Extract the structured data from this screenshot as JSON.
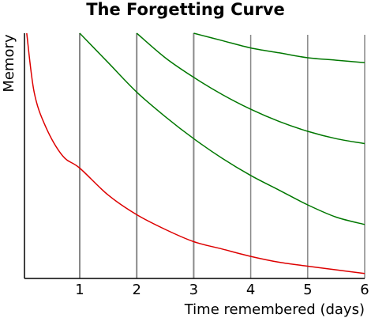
{
  "chart_data": {
    "type": "line",
    "title": "The Forgetting Curve",
    "xlabel": "Time remembered (days)",
    "ylabel": "Memory",
    "xlim": [
      0,
      6
    ],
    "ylim": [
      0,
      1
    ],
    "x_ticks": [
      "1",
      "2",
      "3",
      "4",
      "5",
      "6"
    ],
    "vertical_lines_x": [
      1,
      2,
      3
    ],
    "grid": "vertical gridlines at each day",
    "legend": "none",
    "colors": {
      "forgetting": "#dd0000",
      "review": "#007700",
      "grid": "#888888",
      "axis": "#000000"
    },
    "series": [
      {
        "color": "#dd0000",
        "x": [
          0.07,
          0.2,
          0.4,
          0.7,
          1.0,
          1.5,
          2.0,
          2.5,
          3.0,
          3.5,
          4.0,
          4.5,
          5.0,
          5.5,
          6.0
        ],
        "y": [
          1.0,
          0.76,
          0.62,
          0.5,
          0.45,
          0.34,
          0.26,
          0.2,
          0.15,
          0.12,
          0.09,
          0.066,
          0.05,
          0.035,
          0.02
        ]
      },
      {
        "color": "#007700",
        "x": [
          1.0,
          1.5,
          2.0,
          2.5,
          3.0,
          3.5,
          4.0,
          4.5,
          5.0,
          5.5,
          6.0
        ],
        "y": [
          1.0,
          0.88,
          0.76,
          0.66,
          0.57,
          0.49,
          0.42,
          0.36,
          0.3,
          0.25,
          0.22
        ]
      },
      {
        "color": "#007700",
        "x": [
          2.0,
          2.5,
          3.0,
          3.5,
          4.0,
          4.5,
          5.0,
          5.5,
          6.0
        ],
        "y": [
          1.0,
          0.9,
          0.82,
          0.75,
          0.69,
          0.64,
          0.6,
          0.57,
          0.55
        ]
      },
      {
        "color": "#007700",
        "x": [
          3.0,
          3.5,
          4.0,
          4.5,
          5.0,
          5.5,
          6.0
        ],
        "y": [
          1.0,
          0.97,
          0.94,
          0.92,
          0.9,
          0.89,
          0.88
        ]
      }
    ]
  }
}
